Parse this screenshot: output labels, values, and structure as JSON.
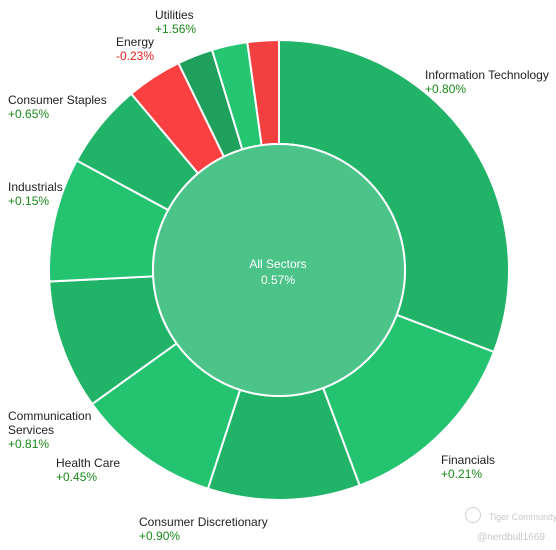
{
  "chart_data": {
    "type": "pie",
    "center": {
      "label": "All Sectors",
      "value": "0.57%"
    },
    "segments": [
      {
        "name": "Information Technology",
        "value": "+0.80%",
        "share": 0.308,
        "color": "#21b367"
      },
      {
        "name": "Financials",
        "value": "+0.21%",
        "share": 0.135,
        "color": "#24c370"
      },
      {
        "name": "Consumer Discretionary",
        "value": "+0.90%",
        "share": 0.107,
        "color": "#21b367"
      },
      {
        "name": "Health Care",
        "value": "+0.45%",
        "share": 0.101,
        "color": "#24c370"
      },
      {
        "name": "Communication Services",
        "value": "+0.81%",
        "share": 0.091,
        "color": "#21b367"
      },
      {
        "name": "Industrials",
        "value": "+0.15%",
        "share": 0.087,
        "color": "#24c370"
      },
      {
        "name": "Consumer Staples",
        "value": "+0.65%",
        "share": 0.06,
        "color": "#21b367"
      },
      {
        "name": "Energy",
        "value": "-0.23%",
        "share": 0.039,
        "color": "#fa4040"
      },
      {
        "name": "Unlabeled sector",
        "value": "",
        "share": 0.025,
        "color": "#1fa05c"
      },
      {
        "name": "Utilities",
        "value": "+1.56%",
        "share": 0.025,
        "color": "#25c572"
      },
      {
        "name": "Unlabeled sector",
        "value": "",
        "share": 0.022,
        "color": "#f24040"
      }
    ],
    "center_color": "#4cc489"
  },
  "watermark": {
    "brand": "Tiger Community",
    "user": "@nerdbull1669"
  }
}
